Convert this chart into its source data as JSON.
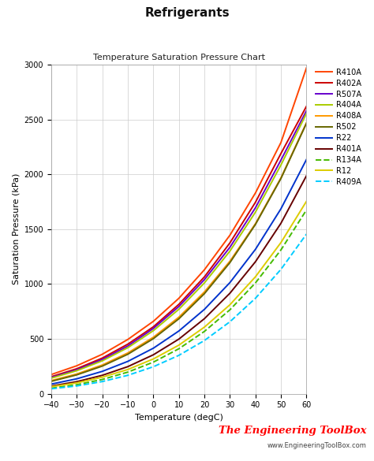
{
  "title": "Refrigerants",
  "subtitle": "Temperature Saturation Pressure Chart",
  "xlabel": "Temperature (degC)",
  "ylabel": "Saturation Pressure (kPa)",
  "pressure_ylim": [
    0,
    3000
  ],
  "yticks": [
    0,
    500,
    1000,
    1500,
    2000,
    2500,
    3000
  ],
  "xticks": [
    -40,
    -30,
    -20,
    -10,
    0,
    10,
    20,
    30,
    40,
    50,
    60
  ],
  "watermark1": "The Engineering ToolBox",
  "watermark2": "www.EngineeringToolBox.com",
  "refrigerants": [
    {
      "name": "R410A",
      "color": "#FF4500",
      "linestyle": "solid"
    },
    {
      "name": "R402A",
      "color": "#CC0000",
      "linestyle": "solid"
    },
    {
      "name": "R507A",
      "color": "#6600CC",
      "linestyle": "solid"
    },
    {
      "name": "R404A",
      "color": "#AACC00",
      "linestyle": "solid"
    },
    {
      "name": "R408A",
      "color": "#FF9900",
      "linestyle": "solid"
    },
    {
      "name": "R502",
      "color": "#666600",
      "linestyle": "solid"
    },
    {
      "name": "R22",
      "color": "#0033CC",
      "linestyle": "solid"
    },
    {
      "name": "R401A",
      "color": "#660000",
      "linestyle": "solid"
    },
    {
      "name": "R134A",
      "color": "#44BB00",
      "linestyle": "dashed"
    },
    {
      "name": "R12",
      "color": "#DDCC00",
      "linestyle": "solid"
    },
    {
      "name": "R409A",
      "color": "#00CCFF",
      "linestyle": "dashed"
    }
  ],
  "background_color": "#FFFFFF",
  "grid_color": "#CCCCCC",
  "pressures": {
    "R410A": [
      175,
      255,
      360,
      495,
      660,
      870,
      1130,
      1445,
      1830,
      2290,
      2970
    ],
    "R402A": [
      155,
      228,
      325,
      452,
      610,
      815,
      1065,
      1375,
      1745,
      2190,
      2620
    ],
    "R507A": [
      148,
      218,
      312,
      435,
      595,
      795,
      1040,
      1335,
      1695,
      2130,
      2580
    ],
    "R404A": [
      142,
      210,
      300,
      420,
      575,
      770,
      1010,
      1300,
      1655,
      2085,
      2555
    ],
    "R408A": [
      120,
      180,
      262,
      372,
      515,
      698,
      928,
      1208,
      1550,
      1968,
      2470
    ],
    "R502": [
      113,
      172,
      252,
      360,
      502,
      683,
      912,
      1195,
      1543,
      1962,
      2465
    ],
    "R22": [
      88,
      136,
      204,
      295,
      415,
      572,
      769,
      1013,
      1316,
      1686,
      2135
    ],
    "R401A": [
      70,
      110,
      168,
      247,
      355,
      498,
      684,
      916,
      1203,
      1554,
      1987
    ],
    "R134A": [
      51,
      82,
      130,
      197,
      288,
      410,
      568,
      765,
      1010,
      1311,
      1675
    ],
    "R12": [
      64,
      99,
      151,
      221,
      317,
      443,
      607,
      811,
      1066,
      1378,
      1754
    ],
    "R409A": [
      45,
      71,
      111,
      168,
      246,
      350,
      485,
      656,
      870,
      1134,
      1455
    ]
  }
}
